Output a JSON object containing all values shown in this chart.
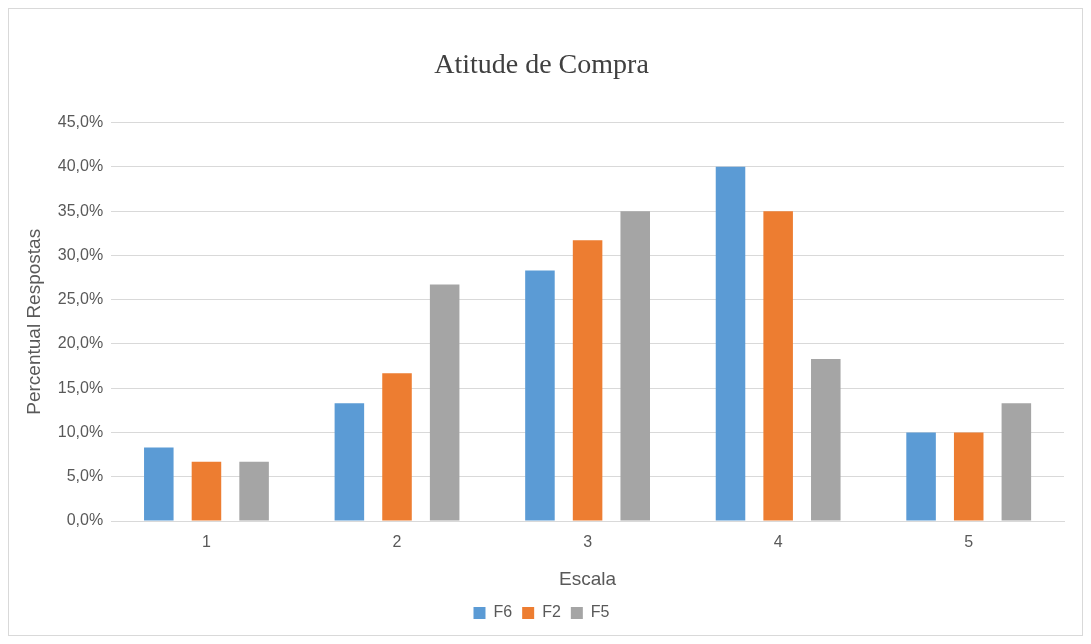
{
  "chart_data": {
    "type": "bar",
    "title": "Atitude de Compra",
    "xlabel": "Escala",
    "ylabel": "Percentual Respostas",
    "categories": [
      "1",
      "2",
      "3",
      "4",
      "5"
    ],
    "series": [
      {
        "name": "F6",
        "color": "#5b9bd5",
        "values": [
          8.3,
          13.3,
          28.3,
          40.0,
          10.0
        ]
      },
      {
        "name": "F2",
        "color": "#ed7d31",
        "values": [
          6.7,
          16.7,
          31.7,
          35.0,
          10.0
        ]
      },
      {
        "name": "F5",
        "color": "#a5a5a5",
        "values": [
          6.7,
          26.7,
          35.0,
          18.3,
          13.3
        ]
      }
    ],
    "ylim": [
      0,
      45
    ],
    "yticks": [
      {
        "value": 0,
        "label": "0,0%"
      },
      {
        "value": 5,
        "label": "5,0%"
      },
      {
        "value": 10,
        "label": "10,0%"
      },
      {
        "value": 15,
        "label": "15,0%"
      },
      {
        "value": 20,
        "label": "20,0%"
      },
      {
        "value": 25,
        "label": "25,0%"
      },
      {
        "value": 30,
        "label": "30,0%"
      },
      {
        "value": 35,
        "label": "35,0%"
      },
      {
        "value": 40,
        "label": "40,0%"
      },
      {
        "value": 45,
        "label": "45,0%"
      }
    ],
    "grid": "y",
    "legend": "bottom"
  }
}
